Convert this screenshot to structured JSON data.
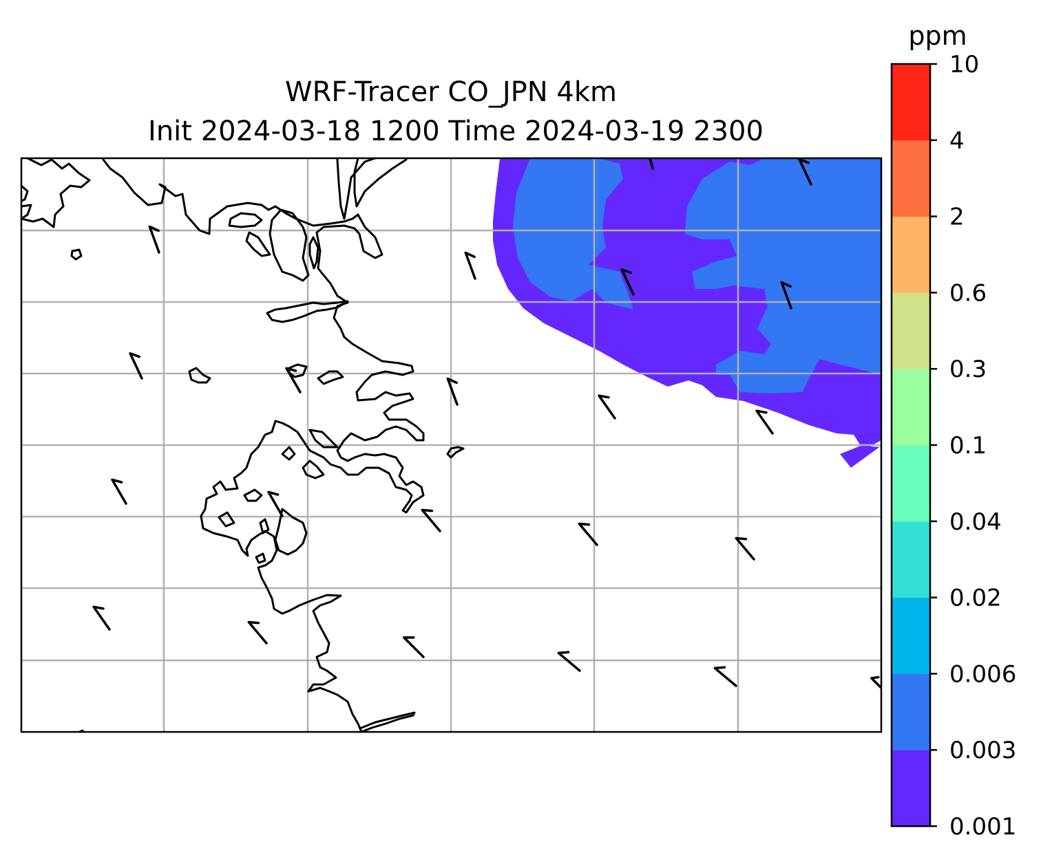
{
  "title": {
    "line1": "WRF-Tracer CO_JPN 4km",
    "line2": "Init 2024-03-18 1200 Time 2024-03-19 2300"
  },
  "colorbar": {
    "unit": "ppm",
    "levels": [
      "0.001",
      "0.003",
      "0.006",
      "0.02",
      "0.04",
      "0.1",
      "0.3",
      "0.6",
      "2",
      "4",
      "10"
    ],
    "colors": [
      "#6428ff",
      "#3377f3",
      "#00b4ec",
      "#33e0d6",
      "#6bffbf",
      "#9bff9f",
      "#d0e28a",
      "#ffb566",
      "#ff7040",
      "#ff2618"
    ]
  },
  "map": {
    "features": [
      "coastline",
      "gridlines",
      "wind-barbs",
      "co-concentration-fill"
    ]
  }
}
